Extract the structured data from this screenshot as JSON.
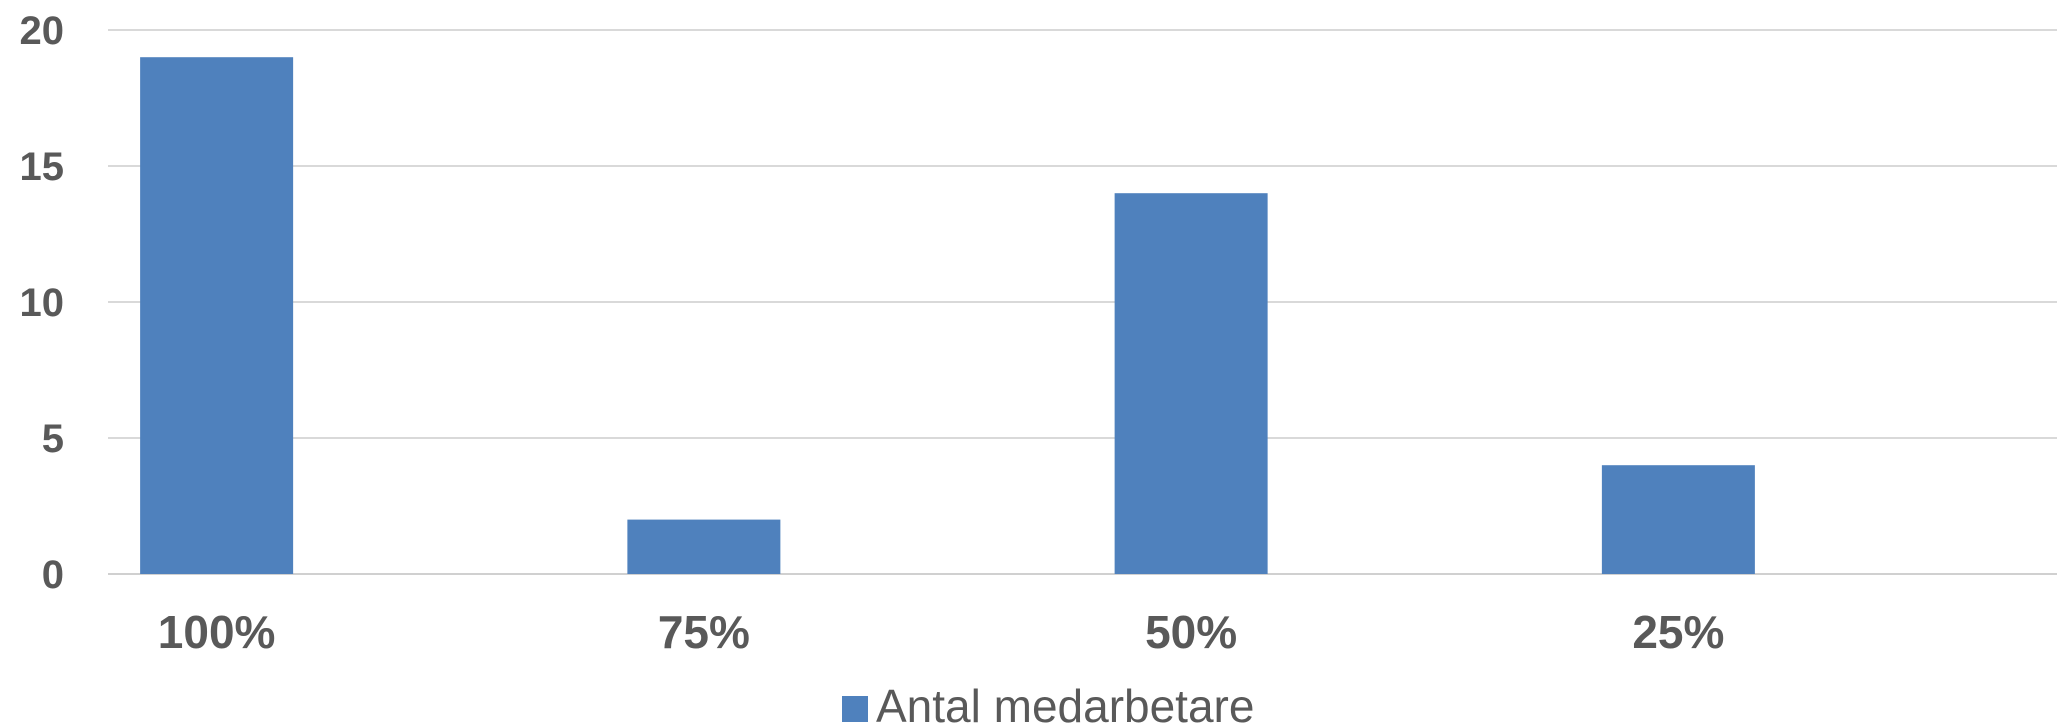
{
  "chart_data": {
    "type": "bar",
    "categories": [
      "100%",
      "75%",
      "50%",
      "25%"
    ],
    "series": [
      {
        "name": "Antal medarbetare",
        "values": [
          19,
          2,
          14,
          4
        ],
        "color": "#4F81BD"
      }
    ],
    "ylim": [
      0,
      20
    ],
    "yticks": [
      0,
      5,
      10,
      15,
      20
    ],
    "title": "",
    "xlabel": "",
    "ylabel": "",
    "grid": true,
    "legend_position": "bottom"
  },
  "legend": {
    "label": "Antal medarbetare"
  }
}
